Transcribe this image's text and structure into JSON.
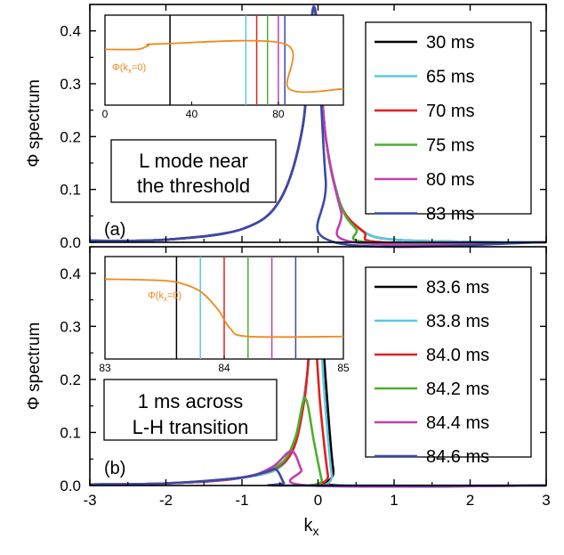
{
  "chart_data": [
    {
      "type": "line",
      "panel_label": "(a)",
      "ylabel": "Φ spectrum",
      "xlabel": "",
      "xlim": [
        -3,
        3
      ],
      "ylim": [
        0,
        0.45
      ],
      "xticks": [
        "-3",
        "-2",
        "-1",
        "0",
        "1",
        "2",
        "3"
      ],
      "yticks": [
        "0.0",
        "0.1",
        "0.2",
        "0.3",
        "0.4"
      ],
      "annotation": [
        "L mode near",
        "the threshold"
      ],
      "legend_position": "top-right",
      "series": [
        {
          "name": "30 ms",
          "color": "#000000",
          "peak_x": -0.05,
          "peak_y": 0.445,
          "points": [
            [
              -3,
              0.003
            ],
            [
              -2,
              0.005
            ],
            [
              -1,
              0.025
            ],
            [
              -0.5,
              0.08
            ],
            [
              -0.2,
              0.22
            ],
            [
              -0.05,
              0.445
            ],
            [
              0.1,
              0.2
            ],
            [
              0.3,
              0.07
            ],
            [
              0.6,
              0.02
            ],
            [
              1,
              0.005
            ],
            [
              2,
              0.001
            ],
            [
              3,
              0.0
            ]
          ]
        },
        {
          "name": "65 ms",
          "color": "#5bc8e0",
          "peak_x": -0.05,
          "peak_y": 0.445,
          "points": [
            [
              -3,
              0.003
            ],
            [
              -2,
              0.005
            ],
            [
              -1,
              0.025
            ],
            [
              -0.5,
              0.08
            ],
            [
              -0.2,
              0.22
            ],
            [
              -0.05,
              0.445
            ],
            [
              0.1,
              0.2
            ],
            [
              0.3,
              0.07
            ],
            [
              0.6,
              0.02
            ],
            [
              1,
              0.005
            ],
            [
              2,
              0.001
            ],
            [
              3,
              0.0
            ]
          ]
        },
        {
          "name": "70 ms",
          "color": "#e02020",
          "peak_x": -0.05,
          "peak_y": 0.445,
          "points": [
            [
              -3,
              0.003
            ],
            [
              -2,
              0.005
            ],
            [
              -1,
              0.025
            ],
            [
              -0.5,
              0.08
            ],
            [
              -0.2,
              0.22
            ],
            [
              -0.05,
              0.445
            ],
            [
              0.1,
              0.2
            ],
            [
              0.3,
              0.07
            ],
            [
              0.6,
              0.02
            ],
            [
              0.85,
              0.0
            ],
            [
              3,
              0.0
            ]
          ]
        },
        {
          "name": "75 ms",
          "color": "#4caf30",
          "peak_x": -0.05,
          "peak_y": 0.445,
          "points": [
            [
              -3,
              0.003
            ],
            [
              -2,
              0.005
            ],
            [
              -1,
              0.025
            ],
            [
              -0.5,
              0.08
            ],
            [
              -0.2,
              0.22
            ],
            [
              -0.05,
              0.445
            ],
            [
              0.1,
              0.2
            ],
            [
              0.3,
              0.07
            ],
            [
              0.5,
              0.025
            ],
            [
              0.68,
              0.0
            ],
            [
              3,
              0.0
            ]
          ]
        },
        {
          "name": "80 ms",
          "color": "#c040b0",
          "peak_x": -0.05,
          "peak_y": 0.445,
          "points": [
            [
              -3,
              0.003
            ],
            [
              -2,
              0.005
            ],
            [
              -1,
              0.025
            ],
            [
              -0.5,
              0.08
            ],
            [
              -0.2,
              0.22
            ],
            [
              -0.05,
              0.445
            ],
            [
              0.1,
              0.2
            ],
            [
              0.3,
              0.06
            ],
            [
              0.48,
              0.0
            ],
            [
              3,
              0.0
            ]
          ]
        },
        {
          "name": "83 ms",
          "color": "#3a4aa8",
          "peak_x": -0.05,
          "peak_y": 0.445,
          "points": [
            [
              -3,
              0.003
            ],
            [
              -2,
              0.005
            ],
            [
              -1,
              0.025
            ],
            [
              -0.5,
              0.08
            ],
            [
              -0.2,
              0.22
            ],
            [
              -0.05,
              0.445
            ],
            [
              0.1,
              0.12
            ],
            [
              0.22,
              0.0
            ],
            [
              3,
              0.0
            ]
          ]
        }
      ],
      "inset": {
        "xlim": [
          0,
          110
        ],
        "xticks": [
          "0",
          "40",
          "80"
        ],
        "xtick_values": [
          0,
          40,
          80
        ],
        "label": "Φ(kx=0)",
        "label_main": "Φ(k",
        "label_sub": "x",
        "label_end": "=0)",
        "curve_color": "#f08a1c",
        "curve_points": [
          [
            0,
            0.62
          ],
          [
            15,
            0.62
          ],
          [
            20,
            0.66
          ],
          [
            25,
            0.68
          ],
          [
            83,
            0.68
          ],
          [
            85,
            0.18
          ],
          [
            110,
            0.18
          ]
        ],
        "markers": [
          {
            "x": 30,
            "color": "#000000"
          },
          {
            "x": 65,
            "color": "#5bc8e0"
          },
          {
            "x": 70,
            "color": "#e02020"
          },
          {
            "x": 75,
            "color": "#4caf30"
          },
          {
            "x": 80,
            "color": "#c040b0"
          },
          {
            "x": 83,
            "color": "#3a4aa8"
          }
        ]
      }
    },
    {
      "type": "line",
      "panel_label": "(b)",
      "ylabel": "Φ spectrum",
      "xlabel_main": "k",
      "xlabel_sub": "x",
      "xlim": [
        -3,
        3
      ],
      "ylim": [
        0,
        0.45
      ],
      "xticks": [
        "-3",
        "-2",
        "-1",
        "0",
        "1",
        "2",
        "3"
      ],
      "yticks": [
        "0.0",
        "0.1",
        "0.2",
        "0.3",
        "0.4"
      ],
      "annotation": [
        "1 ms across",
        "L-H transition"
      ],
      "legend_position": "top-right",
      "series": [
        {
          "name": "83.6 ms",
          "color": "#000000",
          "peak_x": -0.02,
          "peak_y": 0.43,
          "points": [
            [
              -3,
              0.002
            ],
            [
              -2,
              0.004
            ],
            [
              -1,
              0.015
            ],
            [
              -0.4,
              0.05
            ],
            [
              -0.15,
              0.2
            ],
            [
              -0.02,
              0.43
            ],
            [
              0.1,
              0.2
            ],
            [
              0.2,
              0.03
            ],
            [
              0.3,
              0.0
            ],
            [
              3,
              0.0
            ]
          ]
        },
        {
          "name": "83.8 ms",
          "color": "#5bc8e0",
          "peak_x": -0.03,
          "peak_y": 0.41,
          "points": [
            [
              -3,
              0.002
            ],
            [
              -2,
              0.004
            ],
            [
              -1,
              0.015
            ],
            [
              -0.4,
              0.05
            ],
            [
              -0.15,
              0.2
            ],
            [
              -0.03,
              0.41
            ],
            [
              0.08,
              0.18
            ],
            [
              0.18,
              0.02
            ],
            [
              0.25,
              0.0
            ],
            [
              3,
              0.0
            ]
          ]
        },
        {
          "name": "84.0 ms",
          "color": "#e02020",
          "peak_x": -0.07,
          "peak_y": 0.32,
          "points": [
            [
              -3,
              0.002
            ],
            [
              -2,
              0.004
            ],
            [
              -1,
              0.015
            ],
            [
              -0.4,
              0.05
            ],
            [
              -0.18,
              0.16
            ],
            [
              -0.07,
              0.32
            ],
            [
              0.03,
              0.15
            ],
            [
              0.13,
              0.02
            ],
            [
              0.2,
              0.0
            ],
            [
              3,
              0.0
            ]
          ]
        },
        {
          "name": "84.2 ms",
          "color": "#4caf30",
          "peak_x": -0.17,
          "peak_y": 0.165,
          "points": [
            [
              -3,
              0.002
            ],
            [
              -2,
              0.004
            ],
            [
              -1,
              0.015
            ],
            [
              -0.5,
              0.04
            ],
            [
              -0.3,
              0.09
            ],
            [
              -0.17,
              0.165
            ],
            [
              -0.05,
              0.08
            ],
            [
              0.05,
              0.01
            ],
            [
              0.1,
              0.0
            ],
            [
              3,
              0.0
            ]
          ]
        },
        {
          "name": "84.4 ms",
          "color": "#c040b0",
          "peak_x": -0.35,
          "peak_y": 0.065,
          "points": [
            [
              -3,
              0.002
            ],
            [
              -2,
              0.004
            ],
            [
              -1,
              0.015
            ],
            [
              -0.6,
              0.035
            ],
            [
              -0.35,
              0.065
            ],
            [
              -0.22,
              0.03
            ],
            [
              -0.12,
              0.0
            ],
            [
              3,
              0.0
            ]
          ]
        },
        {
          "name": "84.6 ms",
          "color": "#3a4aa8",
          "peak_x": -0.55,
          "peak_y": 0.03,
          "points": [
            [
              -3,
              0.002
            ],
            [
              -2,
              0.004
            ],
            [
              -1,
              0.015
            ],
            [
              -0.7,
              0.025
            ],
            [
              -0.55,
              0.03
            ],
            [
              -0.45,
              0.005
            ],
            [
              -0.4,
              0.0
            ],
            [
              3,
              0.0
            ]
          ]
        }
      ],
      "inset": {
        "xlim": [
          83,
          85
        ],
        "xticks": [
          "83",
          "84",
          "85"
        ],
        "xtick_values": [
          83,
          84,
          85
        ],
        "label": "Φ(kx=0)",
        "label_main": "Φ(k",
        "label_sub": "x",
        "label_end": "=0)",
        "curve_color": "#f08a1c",
        "curve_points": [
          [
            83,
            0.78
          ],
          [
            83.4,
            0.77
          ],
          [
            83.6,
            0.75
          ],
          [
            83.8,
            0.66
          ],
          [
            83.95,
            0.48
          ],
          [
            84.05,
            0.3
          ],
          [
            84.2,
            0.22
          ],
          [
            85,
            0.22
          ]
        ],
        "markers": [
          {
            "x": 83.6,
            "color": "#000000"
          },
          {
            "x": 83.8,
            "color": "#5bc8e0"
          },
          {
            "x": 84.0,
            "color": "#e02020"
          },
          {
            "x": 84.2,
            "color": "#4caf30"
          },
          {
            "x": 84.4,
            "color": "#c040b0"
          },
          {
            "x": 84.6,
            "color": "#3a4aa8"
          }
        ]
      }
    }
  ]
}
